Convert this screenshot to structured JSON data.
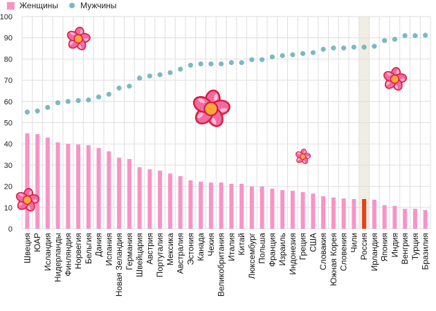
{
  "chart_data": {
    "type": "bar",
    "title": "",
    "xlabel": "",
    "ylabel": "",
    "ylim": [
      0,
      100
    ],
    "yticks": [
      0,
      10,
      20,
      30,
      40,
      50,
      60,
      70,
      80,
      90,
      100
    ],
    "grid": true,
    "legend_position": "top-left",
    "highlight_category": "Россия",
    "colors": {
      "women": "#f993c6",
      "men": "#7ab9c1",
      "highlight_bar": "#ee3e10",
      "highlight_band": "#f0ede2",
      "grid": "#dedede"
    },
    "categories": [
      "Швеция",
      "ЮАР",
      "Исландия",
      "Нидерланды",
      "Финляндия",
      "Норвегия",
      "Бельгия",
      "Дания",
      "Испания",
      "Новая Зеландия",
      "Германия",
      "Швейцария",
      "Австрия",
      "Португалия",
      "Мексика",
      "Австралия",
      "Эстония",
      "Канада",
      "Чехия",
      "Великобритания",
      "Италия",
      "Китай",
      "Люксембург",
      "Польша",
      "Франция",
      "Израиль",
      "Индонезия",
      "Греция",
      "США",
      "Словакия",
      "Южная Корея",
      "Словения",
      "Чили",
      "Россия",
      "Ирландия",
      "Япония",
      "Индия",
      "Венгрия",
      "Турция",
      "Бразилия"
    ],
    "series": [
      {
        "name": "Женщины",
        "kind": "bar",
        "values": [
          45,
          44.6,
          43,
          40.7,
          40,
          39.7,
          39.4,
          38.1,
          36.5,
          33.5,
          32.9,
          29,
          28,
          27.4,
          26,
          24.8,
          22.8,
          22.2,
          21.8,
          21.8,
          21.2,
          21.2,
          19.9,
          19.9,
          18.9,
          18.2,
          17.9,
          17.3,
          16.6,
          15.3,
          14.7,
          14.3,
          14,
          14,
          13.7,
          11.1,
          10.8,
          9.4,
          9.4,
          8.8
        ]
      },
      {
        "name": "Мужчины",
        "kind": "scatter",
        "values": [
          55,
          55.5,
          57.2,
          59.4,
          60,
          60.4,
          60.7,
          62.1,
          63.4,
          66.3,
          67.2,
          71,
          72,
          72.6,
          73.6,
          75.2,
          77.1,
          77.7,
          77.7,
          77.7,
          78.3,
          78.3,
          79.7,
          79.7,
          81,
          81.6,
          82,
          82.6,
          83,
          84.6,
          85.2,
          85.2,
          85.6,
          85.6,
          86,
          88.7,
          89.3,
          91,
          91,
          91.2
        ]
      }
    ],
    "decorations": [
      {
        "type": "flower-icon",
        "x_category": "Норвегия",
        "y_value": 89.5,
        "scale": "medium"
      },
      {
        "type": "flower-icon",
        "x_category": "Швеция",
        "y_value": 13.5,
        "scale": "medium"
      },
      {
        "type": "flower-icon",
        "x_category": "Чехия",
        "y_value": 56.5,
        "scale": "large"
      },
      {
        "type": "flower-icon",
        "x_category": "Греция",
        "y_value": 34,
        "scale": "small"
      },
      {
        "type": "flower-icon",
        "x_category": "Индия",
        "y_value": 70.5,
        "scale": "medium"
      }
    ]
  },
  "legend": {
    "women_label": "Женщины",
    "men_label": "Мужчины"
  }
}
